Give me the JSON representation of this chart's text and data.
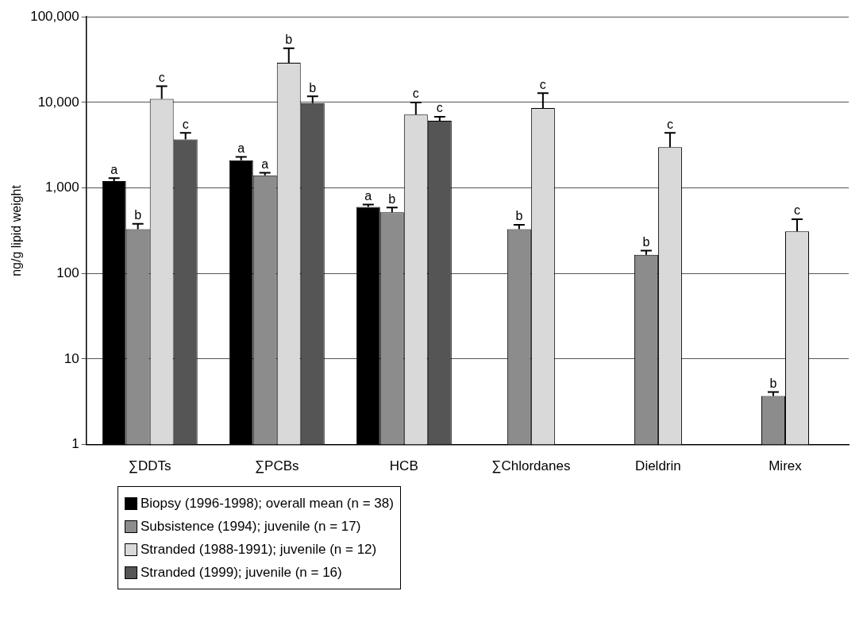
{
  "chart_data": {
    "type": "bar",
    "ylabel": "ng/g lipid weight",
    "categories": [
      "∑DDTs",
      "∑PCBs",
      "HCB",
      "∑Chlordanes",
      "Dieldrin",
      "Mirex"
    ],
    "series": [
      {
        "name": "Biopsy (1996-1998);  overall mean (n = 38)",
        "color": "#000000",
        "values": [
          1200,
          2100,
          600,
          null,
          null,
          null
        ],
        "errors": [
          [
            1200,
            1300
          ],
          [
            2100,
            2300
          ],
          [
            600,
            640
          ],
          null,
          null,
          null
        ],
        "value_labels": [
          "a",
          "a",
          "a",
          null,
          null,
          null
        ]
      },
      {
        "name": "Subsistence (1994);  juvenile (n = 17)",
        "color": "#8c8c8c",
        "values": [
          330,
          1400,
          520,
          330,
          165,
          3.7
        ],
        "errors": [
          [
            330,
            380
          ],
          [
            1400,
            1500
          ],
          [
            520,
            590
          ],
          [
            330,
            370
          ],
          [
            165,
            185
          ],
          [
            3.7,
            4.1
          ]
        ],
        "value_labels": [
          "b",
          "a",
          "b",
          "b",
          "b",
          "b"
        ]
      },
      {
        "name": "Stranded (1988-1991);  juvenile (n = 12)",
        "color": "#d9d9d9",
        "values": [
          11000,
          29000,
          7200,
          8600,
          3000,
          310
        ],
        "errors": [
          [
            11000,
            15500
          ],
          [
            29000,
            43000
          ],
          [
            7200,
            10000
          ],
          [
            8600,
            12800
          ],
          [
            3000,
            4400
          ],
          [
            310,
            430
          ]
        ],
        "value_labels": [
          "c",
          "b",
          "c",
          "c",
          "c",
          "c"
        ]
      },
      {
        "name": "Stranded (1999);  juvenile (n = 16)",
        "color": "#555555",
        "values": [
          3700,
          9800,
          6100,
          null,
          null,
          null
        ],
        "errors": [
          [
            3700,
            4400
          ],
          [
            9800,
            11800
          ],
          [
            6100,
            6800
          ],
          null,
          null,
          null
        ],
        "value_labels": [
          "c",
          "b",
          "c",
          null,
          null,
          null
        ]
      }
    ],
    "log": "y",
    "ylim": [
      1,
      100000
    ],
    "yticks": [
      1,
      10,
      100,
      {
        "value": 1000,
        "label": "1,000"
      },
      {
        "value": 10000,
        "label": "10,000"
      },
      {
        "value": 100000,
        "label": "100,000"
      }
    ],
    "grid": "y",
    "legend": "bottom"
  }
}
